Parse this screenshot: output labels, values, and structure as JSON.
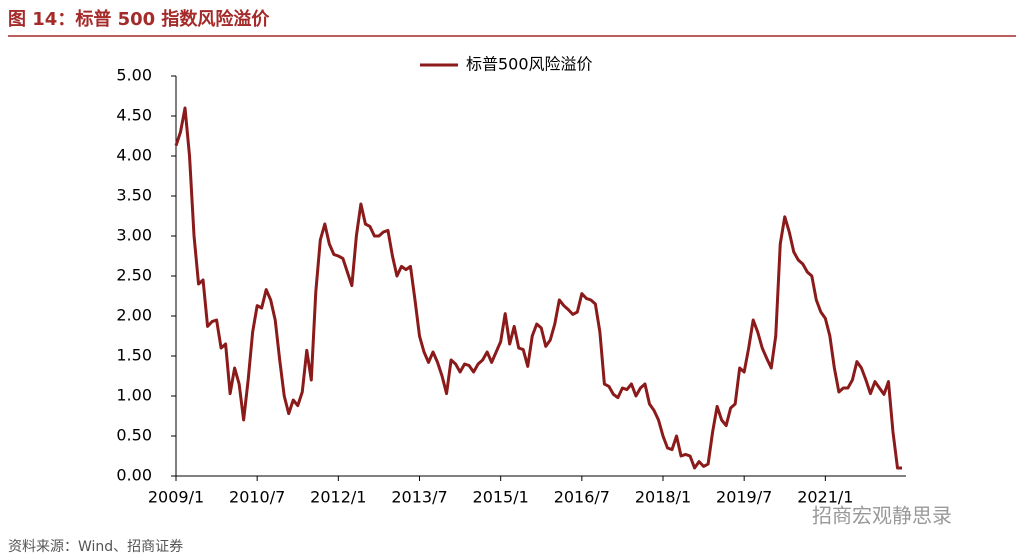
{
  "chart_data": {
    "type": "line",
    "title": "图 14：标普 500 指数风险溢价",
    "source": "资料来源：Wind、招商证券",
    "watermark": "招商宏观静思录",
    "categories": [
      "2009/1",
      null,
      null,
      null,
      null,
      null,
      null,
      null,
      null,
      null,
      null,
      null,
      null,
      null,
      null,
      null,
      null,
      null,
      "2010/7",
      null,
      null,
      null,
      null,
      null,
      null,
      null,
      null,
      null,
      null,
      null,
      null,
      null,
      null,
      null,
      null,
      null,
      "2012/1",
      null,
      null,
      null,
      null,
      null,
      null,
      null,
      null,
      null,
      null,
      null,
      null,
      null,
      null,
      null,
      null,
      null,
      "2013/7",
      null,
      null,
      null,
      null,
      null,
      null,
      null,
      null,
      null,
      null,
      null,
      null,
      null,
      null,
      null,
      null,
      null,
      "2015/1",
      null,
      null,
      null,
      null,
      null,
      null,
      null,
      null,
      null,
      null,
      null,
      null,
      null,
      null,
      null,
      null,
      null,
      "2016/7",
      null,
      null,
      null,
      null,
      null,
      null,
      null,
      null,
      null,
      null,
      null,
      null,
      null,
      null,
      null,
      null,
      null,
      "2018/1",
      null,
      null,
      null,
      null,
      null,
      null,
      null,
      null,
      null,
      null,
      null,
      null,
      null,
      null,
      null,
      null,
      null,
      "2019/7",
      null,
      null,
      null,
      null,
      null,
      null,
      null,
      null,
      null,
      null,
      null,
      null,
      null,
      null,
      null,
      null,
      null,
      "2021/1",
      null,
      null,
      null,
      null,
      null,
      null,
      null,
      null,
      null,
      null,
      null,
      null,
      null,
      null,
      null,
      null,
      null
    ],
    "series": [
      {
        "name": "标普500风险溢价",
        "color": "#8b1a1a",
        "values": [
          4.13,
          4.3,
          4.6,
          4.0,
          3.0,
          2.4,
          2.45,
          1.87,
          1.93,
          1.95,
          1.6,
          1.65,
          1.03,
          1.35,
          1.15,
          0.7,
          1.2,
          1.8,
          2.13,
          2.1,
          2.33,
          2.2,
          1.95,
          1.45,
          1.0,
          0.78,
          0.95,
          0.88,
          1.05,
          1.57,
          1.2,
          2.3,
          2.95,
          3.15,
          2.9,
          2.77,
          2.75,
          2.72,
          2.55,
          2.38,
          3.0,
          3.4,
          3.15,
          3.12,
          3.0,
          3.0,
          3.05,
          3.07,
          2.75,
          2.5,
          2.62,
          2.58,
          2.62,
          2.2,
          1.75,
          1.55,
          1.42,
          1.55,
          1.42,
          1.25,
          1.03,
          1.45,
          1.4,
          1.3,
          1.4,
          1.38,
          1.3,
          1.4,
          1.45,
          1.55,
          1.42,
          1.55,
          1.68,
          2.03,
          1.65,
          1.87,
          1.6,
          1.58,
          1.37,
          1.75,
          1.9,
          1.85,
          1.62,
          1.7,
          1.9,
          2.2,
          2.13,
          2.08,
          2.02,
          2.05,
          2.28,
          2.22,
          2.2,
          2.15,
          1.8,
          1.15,
          1.12,
          1.02,
          0.98,
          1.1,
          1.08,
          1.15,
          1.0,
          1.1,
          1.15,
          0.9,
          0.82,
          0.7,
          0.5,
          0.35,
          0.33,
          0.5,
          0.25,
          0.27,
          0.25,
          0.1,
          0.18,
          0.12,
          0.15,
          0.55,
          0.87,
          0.7,
          0.63,
          0.85,
          0.9,
          1.35,
          1.3,
          1.6,
          1.95,
          1.8,
          1.6,
          1.47,
          1.35,
          1.75,
          2.9,
          3.24,
          3.05,
          2.8,
          2.7,
          2.65,
          2.55,
          2.5,
          2.2,
          2.05,
          1.97,
          1.75,
          1.35,
          1.05,
          1.1,
          1.1,
          1.2,
          1.43,
          1.35,
          1.2,
          1.03,
          1.18,
          1.1,
          1.02,
          1.18,
          0.55,
          0.1,
          0.1
        ]
      }
    ],
    "ylim": [
      0,
      5
    ],
    "yticks": [
      {
        "value": 0,
        "label": "0.00"
      },
      {
        "value": 0.5,
        "label": "0.50"
      },
      {
        "value": 1,
        "label": "1.00"
      },
      {
        "value": 1.5,
        "label": "1.50"
      },
      {
        "value": 2,
        "label": "2.00"
      },
      {
        "value": 2.5,
        "label": "2.50"
      },
      {
        "value": 3,
        "label": "3.00"
      },
      {
        "value": 3.5,
        "label": "3.50"
      },
      {
        "value": 4,
        "label": "4.00"
      },
      {
        "value": 4.5,
        "label": "4.50"
      },
      {
        "value": 5,
        "label": "5.00"
      }
    ],
    "grid": false,
    "legend": "top"
  }
}
